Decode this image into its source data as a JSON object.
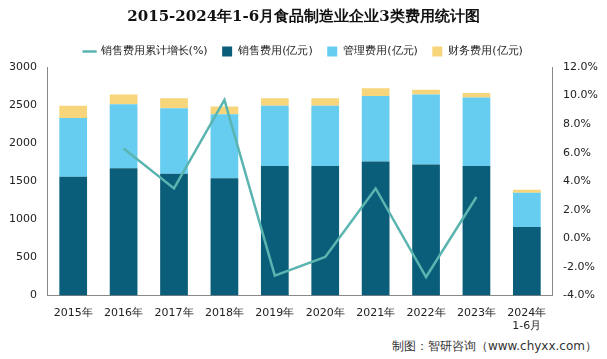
{
  "chart_data": {
    "type": "bar",
    "title": "2015-2024年1-6月食品制造业企业3类费用统计图",
    "source": "制图：智研咨询（www.chyxx.com）",
    "categories": [
      "2015年",
      "2016年",
      "2017年",
      "2018年",
      "2019年",
      "2020年",
      "2021年",
      "2022年",
      "2023年",
      [
        "2024年",
        "1-6月"
      ]
    ],
    "series": [
      {
        "name": "销售费用(亿元)",
        "type": "bar",
        "color": "#0b5e7a",
        "values": [
          1560,
          1670,
          1600,
          1540,
          1700,
          1700,
          1760,
          1720,
          1700,
          900
        ]
      },
      {
        "name": "管理费用(亿元)",
        "type": "bar",
        "color": "#66ccf0",
        "values": [
          770,
          840,
          860,
          840,
          790,
          790,
          860,
          920,
          900,
          450
        ]
      },
      {
        "name": "财务费用(亿元)",
        "type": "bar",
        "color": "#f7d57a",
        "values": [
          160,
          130,
          130,
          100,
          100,
          100,
          100,
          60,
          60,
          40
        ]
      },
      {
        "name": "销售费用累计增长(%)",
        "type": "line",
        "axis": "y2",
        "color": "#5ab5b0",
        "marker": "none",
        "values": [
          null,
          6.3,
          3.5,
          9.7,
          -2.6,
          -1.3,
          3.5,
          -2.7,
          2.9,
          null
        ]
      }
    ],
    "stacked": true,
    "legend": "top",
    "grid": false,
    "ylim": [
      0,
      3000
    ],
    "yticks": [
      0,
      500,
      1000,
      1500,
      2000,
      2500,
      3000
    ],
    "y2lim": [
      -4,
      12
    ],
    "y2ticks": [
      {
        "value": -4,
        "label": "-4.0%"
      },
      {
        "value": -2,
        "label": "-2.0%"
      },
      {
        "value": 0,
        "label": "0.0%"
      },
      {
        "value": 2,
        "label": "2.0%"
      },
      {
        "value": 4,
        "label": "4.0%"
      },
      {
        "value": 6,
        "label": "6.0%"
      },
      {
        "value": 8,
        "label": "8.0%"
      },
      {
        "value": 10,
        "label": "10.0%"
      },
      {
        "value": 12,
        "label": "12.0%"
      }
    ]
  }
}
